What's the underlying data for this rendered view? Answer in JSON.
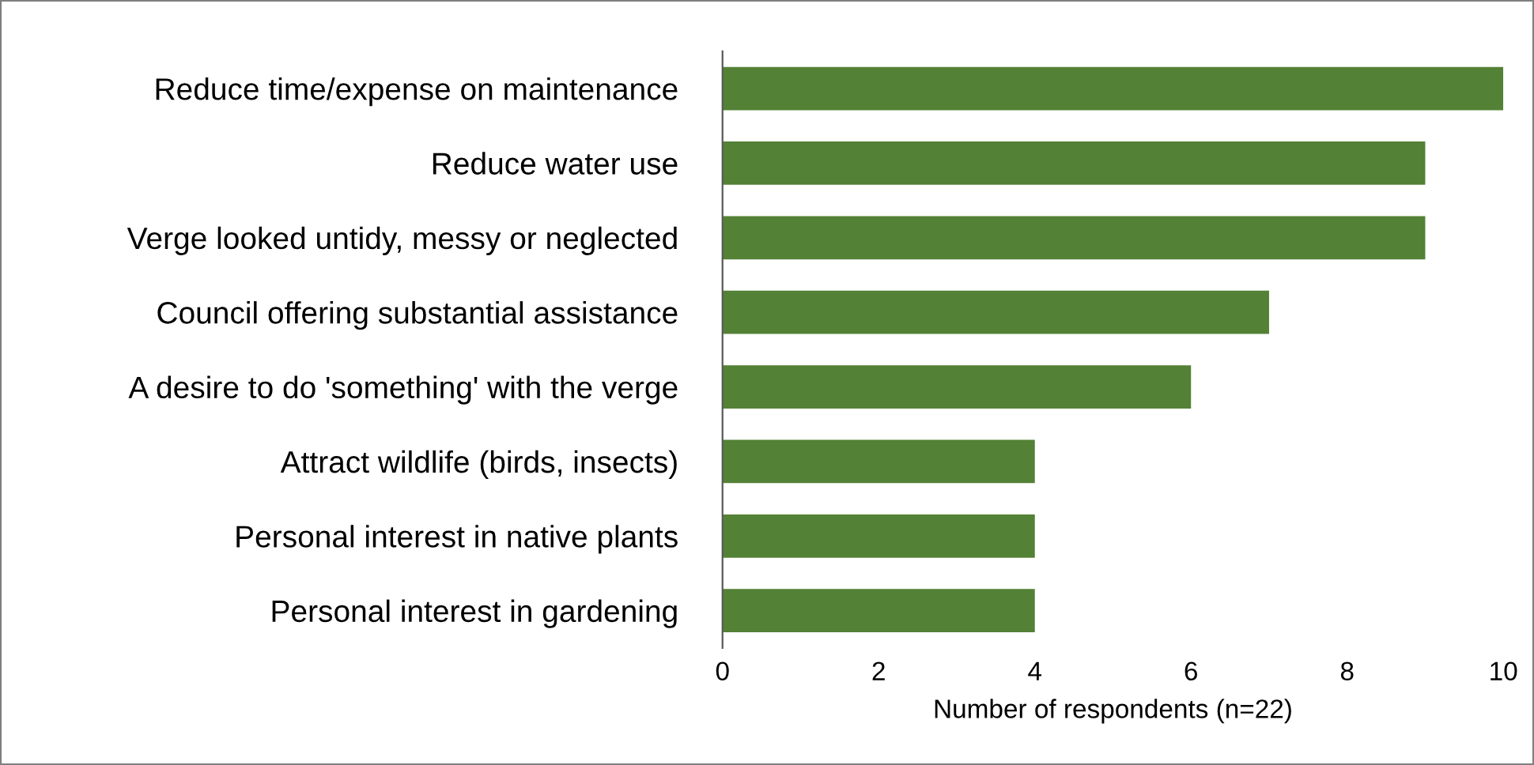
{
  "chart_data": {
    "type": "bar",
    "orientation": "horizontal",
    "xlabel": "Number of respondents (n=22)",
    "categories": [
      "Reduce time/expense on maintenance",
      "Reduce water use",
      "Verge looked untidy, messy or neglected",
      "Council offering substantial assistance",
      "A desire to do 'something' with the verge",
      "Attract wildlife (birds, insects)",
      "Personal interest in native plants",
      "Personal interest in gardening"
    ],
    "values": [
      10,
      9,
      9,
      7,
      6,
      4,
      4,
      4
    ],
    "color": "#538135",
    "xlim": [
      0,
      10
    ],
    "xticks": [
      0,
      2,
      4,
      6,
      8,
      10
    ],
    "grid": false
  }
}
